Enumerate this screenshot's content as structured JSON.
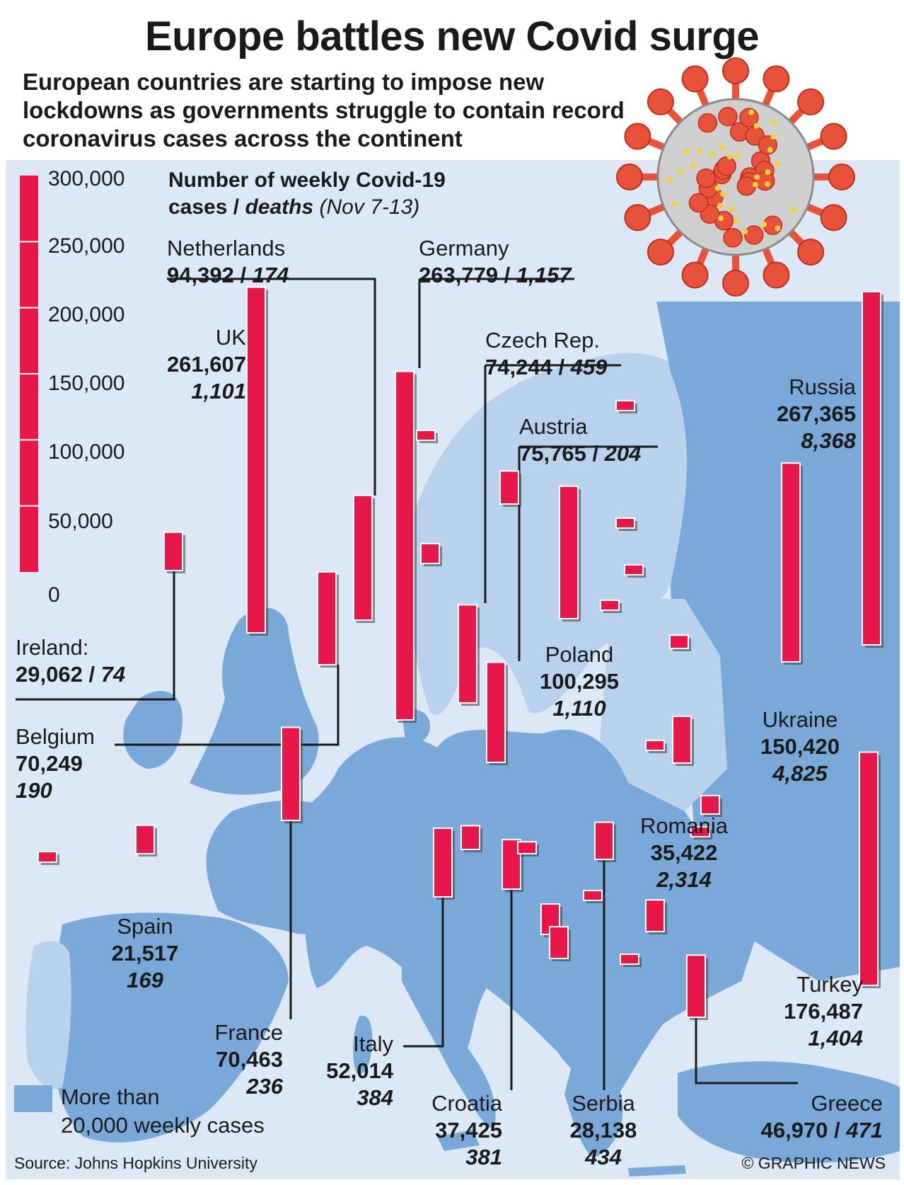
{
  "title": "Europe battles new Covid surge",
  "subtitle": "European countries are starting to impose new lockdowns as governments struggle to contain record coronavirus cases across the continent",
  "chart_heading": {
    "line1": "Number of weekly Covid-19",
    "line2_bold": "cases / ",
    "line2_italic": "deaths",
    "line2_dates": " (Nov 7-13)"
  },
  "legend": {
    "text_line1": "More than",
    "text_line2": "20,000 weekly cases"
  },
  "source": "Source: Johns Hopkins University",
  "credit": "© GRAPHIC NEWS",
  "colors": {
    "bar": "#e8174a",
    "map_high": "#7aa8d8",
    "map_low": "#b8d1ec",
    "sea": "#dce8f5"
  },
  "chart_data": {
    "type": "bar",
    "title": "Number of weekly Covid-19 cases / deaths (Nov 7-13)",
    "ylim": [
      0,
      300000
    ],
    "yticks": [
      "300,000",
      "250,000",
      "200,000",
      "150,000",
      "100,000",
      "50,000",
      "0"
    ],
    "countries": [
      {
        "name": "Netherlands",
        "cases": 94392,
        "cases_label": "94,392",
        "deaths": "174"
      },
      {
        "name": "Germany",
        "cases": 263779,
        "cases_label": "263,779",
        "deaths": "1,157"
      },
      {
        "name": "UK",
        "cases": 261607,
        "cases_label": "261,607",
        "deaths": "1,101"
      },
      {
        "name": "Czech Rep.",
        "cases": 74244,
        "cases_label": "74,244",
        "deaths": "459"
      },
      {
        "name": "Austria",
        "cases": 75765,
        "cases_label": "75,765",
        "deaths": "204"
      },
      {
        "name": "Russia",
        "cases": 267365,
        "cases_label": "267,365",
        "deaths": "8,368"
      },
      {
        "name": "Ireland:",
        "cases": 29062,
        "cases_label": "29,062",
        "deaths": "74"
      },
      {
        "name": "Poland",
        "cases": 100295,
        "cases_label": "100,295",
        "deaths": "1,110"
      },
      {
        "name": "Belgium",
        "cases": 70249,
        "cases_label": "70,249",
        "deaths": "190"
      },
      {
        "name": "Ukraine",
        "cases": 150420,
        "cases_label": "150,420",
        "deaths": "4,825"
      },
      {
        "name": "Romania",
        "cases": 35422,
        "cases_label": "35,422",
        "deaths": "2,314"
      },
      {
        "name": "Spain",
        "cases": 21517,
        "cases_label": "21,517",
        "deaths": "169"
      },
      {
        "name": "Turkey",
        "cases": 176487,
        "cases_label": "176,487",
        "deaths": "1,404"
      },
      {
        "name": "France",
        "cases": 70463,
        "cases_label": "70,463",
        "deaths": "236"
      },
      {
        "name": "Italy",
        "cases": 52014,
        "cases_label": "52,014",
        "deaths": "384"
      },
      {
        "name": "Greece",
        "cases": 46970,
        "cases_label": "46,970",
        "deaths": "471"
      },
      {
        "name": "Croatia",
        "cases": 37425,
        "cases_label": "37,425",
        "deaths": "381"
      },
      {
        "name": "Serbia",
        "cases": 28138,
        "cases_label": "28,138",
        "deaths": "434"
      }
    ],
    "unlabeled_bars": [
      8000,
      3000,
      15000,
      25000,
      5000,
      5000,
      4000,
      5000,
      10000,
      14000,
      18000,
      9000,
      23000,
      24000,
      6000,
      24000,
      5000,
      4000,
      3000
    ]
  }
}
